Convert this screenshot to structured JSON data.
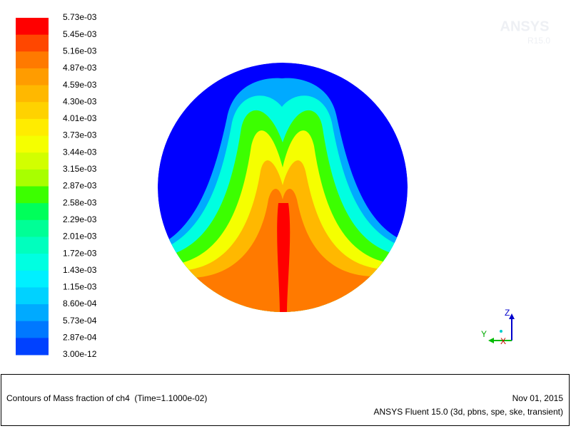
{
  "colorbar": {
    "labels": [
      "5.73e-03",
      "5.45e-03",
      "5.16e-03",
      "4.87e-03",
      "4.59e-03",
      "4.30e-03",
      "4.01e-03",
      "3.73e-03",
      "3.44e-03",
      "3.15e-03",
      "2.87e-03",
      "2.58e-03",
      "2.29e-03",
      "2.01e-03",
      "1.72e-03",
      "1.43e-03",
      "1.15e-03",
      "8.60e-04",
      "5.73e-04",
      "2.87e-04",
      "3.00e-12"
    ],
    "colors": [
      "#ff0000",
      "#ff4700",
      "#ff7a00",
      "#ff9c00",
      "#ffb800",
      "#ffd200",
      "#ffec00",
      "#f5ff00",
      "#d2ff00",
      "#a8ff00",
      "#3cff00",
      "#00ff5a",
      "#00ff96",
      "#00ffbe",
      "#00ffe1",
      "#00f0ff",
      "#00d2ff",
      "#00aaff",
      "#0078ff",
      "#0041ff"
    ]
  },
  "watermark": {
    "line1": "ANSYS",
    "line2": "R15.0"
  },
  "triad": {
    "z": "Z",
    "y": "Y",
    "x": "X"
  },
  "caption": {
    "title": "Contours of Mass fraction of ch4  (Time=1.1000e-02)",
    "date": "Nov 01, 2015",
    "product": "ANSYS Fluent 15.0 (3d, pbns, spe, ske, transient)"
  }
}
